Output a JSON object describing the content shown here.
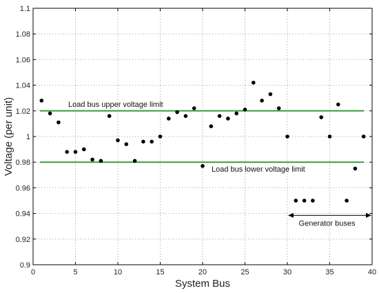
{
  "chart_data": {
    "type": "scatter",
    "title": "",
    "xlabel": "System Bus",
    "ylabel": "Voltage (per unit)",
    "xlim": [
      0,
      40
    ],
    "ylim": [
      0.9,
      1.1
    ],
    "xticks": [
      0,
      5,
      10,
      15,
      20,
      25,
      30,
      35,
      40
    ],
    "yticks": [
      0.9,
      0.92,
      0.94,
      0.96,
      0.98,
      1,
      1.02,
      1.04,
      1.06,
      1.08,
      1.1
    ],
    "xtick_labels": [
      "0",
      "5",
      "10",
      "15",
      "20",
      "25",
      "30",
      "35",
      "40"
    ],
    "ytick_labels": [
      "0.9",
      "0.92",
      "0.94",
      "0.96",
      "0.98",
      "1",
      "1.02",
      "1.04",
      "1.06",
      "1.08",
      "1.1"
    ],
    "grid": true,
    "limit_lines": [
      {
        "y": 1.02,
        "label": "Load bus upper voltage limit",
        "color": "#3a9a3a"
      },
      {
        "y": 0.98,
        "label": "Load bus lower voltage limit",
        "color": "#3a9a3a"
      }
    ],
    "annotations": [
      {
        "text": "Generator buses",
        "x_range": [
          30,
          40
        ],
        "y": 0.9385
      }
    ],
    "marker_color": "#000000",
    "x": [
      1,
      2,
      3,
      4,
      5,
      6,
      7,
      8,
      9,
      10,
      11,
      12,
      13,
      14,
      15,
      16,
      17,
      18,
      19,
      20,
      21,
      22,
      23,
      24,
      25,
      26,
      27,
      28,
      29,
      30,
      31,
      32,
      33,
      34,
      35,
      36,
      37,
      38,
      39
    ],
    "y": [
      1.028,
      1.018,
      1.011,
      0.988,
      0.988,
      0.99,
      0.982,
      0.981,
      1.016,
      0.997,
      0.994,
      0.981,
      0.996,
      0.996,
      1.0,
      1.014,
      1.019,
      1.016,
      1.022,
      0.977,
      1.008,
      1.016,
      1.014,
      1.018,
      1.021,
      1.042,
      1.028,
      1.033,
      1.022,
      1.0,
      0.95,
      0.95,
      0.95,
      1.015,
      1.0,
      1.025,
      0.95,
      0.975,
      1.0
    ]
  }
}
